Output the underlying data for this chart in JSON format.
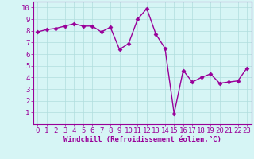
{
  "x": [
    0,
    1,
    2,
    3,
    4,
    5,
    6,
    7,
    8,
    9,
    10,
    11,
    12,
    13,
    14,
    15,
    16,
    17,
    18,
    19,
    20,
    21,
    22,
    23
  ],
  "y": [
    7.9,
    8.1,
    8.2,
    8.4,
    8.6,
    8.4,
    8.4,
    7.9,
    8.3,
    6.4,
    6.9,
    9.0,
    9.9,
    7.7,
    6.5,
    0.9,
    4.6,
    3.6,
    4.0,
    4.3,
    3.5,
    3.6,
    3.7,
    4.8
  ],
  "line_color": "#990099",
  "marker": "D",
  "marker_size": 2.5,
  "bg_color": "#d6f5f5",
  "grid_color": "#b0dede",
  "xlabel": "Windchill (Refroidissement éolien,°C)",
  "xlabel_color": "#990099",
  "tick_color": "#990099",
  "xlim": [
    -0.5,
    23.5
  ],
  "ylim": [
    0,
    10.5
  ],
  "yticks": [
    1,
    2,
    3,
    4,
    5,
    6,
    7,
    8,
    9,
    10
  ],
  "xticks": [
    0,
    1,
    2,
    3,
    4,
    5,
    6,
    7,
    8,
    9,
    10,
    11,
    12,
    13,
    14,
    15,
    16,
    17,
    18,
    19,
    20,
    21,
    22,
    23
  ],
  "xlabel_fontsize": 6.5,
  "tick_fontsize": 6.5,
  "line_width": 1.0,
  "spine_color": "#990099",
  "border_color": "#990099"
}
